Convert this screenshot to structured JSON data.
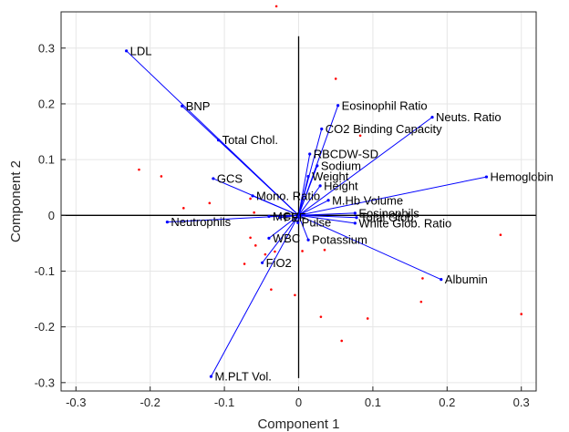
{
  "chart_data": {
    "type": "scatter",
    "subtype": "biplot",
    "title": "",
    "xlabel": "Component 1",
    "ylabel": "Component 2",
    "xlim": [
      -0.32,
      0.32
    ],
    "ylim": [
      -0.315,
      0.365
    ],
    "xticks": [
      -0.3,
      -0.2,
      -0.1,
      0,
      0.1,
      0.2,
      0.3
    ],
    "yticks": [
      -0.3,
      -0.2,
      -0.1,
      0,
      0.1,
      0.2,
      0.3
    ],
    "xtick_labels": [
      "-0.3",
      "-0.2",
      "-0.1",
      "0",
      "0.1",
      "0.2",
      "0.3"
    ],
    "ytick_labels": [
      "-0.3",
      "-0.2",
      "-0.1",
      "0",
      "0.1",
      "0.2",
      "0.3"
    ],
    "grid": true,
    "colors": {
      "vector": "#0000ff",
      "vector_tip": "#0000ff",
      "observation": "#ff0000",
      "axis_line": "#000000",
      "grid": "#e6e6e6",
      "label": "#000000"
    },
    "vectors": [
      {
        "label": "LDL",
        "x": -0.232,
        "y": 0.295
      },
      {
        "label": "BNP",
        "x": -0.157,
        "y": 0.196
      },
      {
        "label": "Total Chol.",
        "x": -0.108,
        "y": 0.135
      },
      {
        "label": "GCS",
        "x": -0.115,
        "y": 0.066
      },
      {
        "label": "Mono. Ratio",
        "x": -0.062,
        "y": 0.035
      },
      {
        "label": "Neutrophils",
        "x": -0.177,
        "y": -0.012
      },
      {
        "label": "MCV",
        "x": -0.04,
        "y": -0.002
      },
      {
        "label": "FEF",
        "x": -0.025,
        "y": -0.004
      },
      {
        "label": "WBC",
        "x": -0.04,
        "y": -0.041
      },
      {
        "label": "FiO2",
        "x": -0.049,
        "y": -0.085
      },
      {
        "label": "M.PLT Vol.",
        "x": -0.118,
        "y": -0.289
      },
      {
        "label": "Pulse",
        "x": -0.001,
        "y": -0.013
      },
      {
        "label": "Potassium",
        "x": 0.013,
        "y": -0.044
      },
      {
        "label": "Eosinophil Ratio",
        "x": 0.053,
        "y": 0.197
      },
      {
        "label": "CO2 Binding Capacity",
        "x": 0.031,
        "y": 0.155
      },
      {
        "label": "Neuts. Ratio",
        "x": 0.18,
        "y": 0.176
      },
      {
        "label": "RBCDW-SD",
        "x": 0.015,
        "y": 0.11
      },
      {
        "label": "Sodium",
        "x": 0.025,
        "y": 0.089
      },
      {
        "label": "Weight",
        "x": 0.013,
        "y": 0.07
      },
      {
        "label": "Height",
        "x": 0.029,
        "y": 0.053
      },
      {
        "label": "Hemoglobin",
        "x": 0.253,
        "y": 0.069
      },
      {
        "label": "M.Hb Volume",
        "x": 0.04,
        "y": 0.027
      },
      {
        "label": "Eosinophils",
        "x": 0.076,
        "y": 0.004
      },
      {
        "label": "Total Glob.",
        "x": 0.078,
        "y": -0.004
      },
      {
        "label": "White Glob. Ratio",
        "x": 0.076,
        "y": -0.014
      },
      {
        "label": "Albumin",
        "x": 0.192,
        "y": -0.115
      }
    ],
    "observations": [
      {
        "x": -0.03,
        "y": 0.375
      },
      {
        "x": 0.05,
        "y": 0.245
      },
      {
        "x": 0.083,
        "y": 0.143
      },
      {
        "x": -0.215,
        "y": 0.082
      },
      {
        "x": -0.185,
        "y": 0.07
      },
      {
        "x": -0.155,
        "y": 0.013
      },
      {
        "x": -0.12,
        "y": 0.022
      },
      {
        "x": -0.065,
        "y": 0.03
      },
      {
        "x": -0.06,
        "y": 0.005
      },
      {
        "x": -0.065,
        "y": -0.04
      },
      {
        "x": -0.058,
        "y": -0.054
      },
      {
        "x": -0.045,
        "y": -0.07
      },
      {
        "x": -0.032,
        "y": -0.065
      },
      {
        "x": -0.073,
        "y": -0.087
      },
      {
        "x": -0.037,
        "y": -0.133
      },
      {
        "x": -0.005,
        "y": -0.143
      },
      {
        "x": 0.005,
        "y": -0.064
      },
      {
        "x": 0.035,
        "y": -0.062
      },
      {
        "x": 0.03,
        "y": -0.182
      },
      {
        "x": 0.058,
        "y": -0.225
      },
      {
        "x": 0.093,
        "y": -0.185
      },
      {
        "x": 0.167,
        "y": -0.113
      },
      {
        "x": 0.165,
        "y": -0.155
      },
      {
        "x": 0.272,
        "y": -0.035
      },
      {
        "x": 0.3,
        "y": -0.177
      }
    ]
  }
}
